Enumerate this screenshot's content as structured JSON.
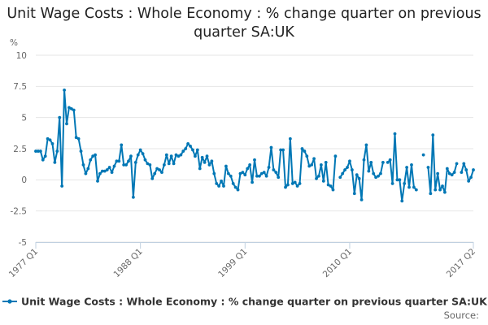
{
  "chart_data": {
    "type": "line",
    "title": "Unit Wage Costs : Whole Economy : % change quarter on previous quarter SA:UK",
    "ylabel": "%",
    "xlabel": "",
    "ylim": [
      -5,
      10
    ],
    "yticks": [
      "10",
      "7.5",
      "5",
      "2.5",
      "0",
      "-2.5",
      "-5"
    ],
    "x_ticklabels": [
      "1977 Q1",
      "1988 Q1",
      "1999 Q1",
      "2010 Q1",
      "2017 Q2"
    ],
    "grid": "horizontal",
    "legend": "bottom",
    "source_label": "Source:",
    "series": [
      {
        "name": "Unit Wage Costs : Whole Economy : % change quarter on previous quarter SA:UK",
        "color": "#0077b5",
        "marker": "circle",
        "values": [
          2.3,
          2.3,
          2.3,
          1.6,
          1.9,
          3.3,
          3.2,
          2.9,
          1.4,
          2.3,
          5.0,
          -0.5,
          7.2,
          4.5,
          5.8,
          5.7,
          5.6,
          3.4,
          3.3,
          2.3,
          1.2,
          0.5,
          0.9,
          1.6,
          1.9,
          2.0,
          -0.1,
          0.5,
          0.7,
          0.7,
          0.8,
          1.0,
          0.6,
          1.1,
          1.5,
          1.5,
          2.8,
          1.2,
          1.2,
          1.5,
          1.9,
          -1.4,
          1.4,
          2.0,
          2.4,
          2.1,
          1.6,
          1.3,
          1.2,
          0.1,
          0.5,
          0.9,
          0.8,
          0.6,
          1.2,
          2.0,
          1.3,
          1.9,
          1.3,
          2.0,
          1.9,
          2.0,
          2.3,
          2.5,
          2.9,
          2.7,
          2.4,
          1.9,
          2.4,
          0.9,
          1.8,
          1.4,
          1.9,
          1.2,
          1.5,
          0.5,
          -0.3,
          -0.5,
          -0.1,
          -0.5,
          1.1,
          0.5,
          0.3,
          -0.3,
          -0.6,
          -0.8,
          0.5,
          0.6,
          0.4,
          0.9,
          1.2,
          -0.2,
          1.6,
          0.3,
          0.3,
          0.5,
          0.6,
          0.3,
          1.0,
          2.6,
          0.8,
          0.6,
          0.2,
          2.4,
          2.4,
          -0.6,
          -0.4,
          3.3,
          -0.3,
          -0.2,
          -0.5,
          -0.3,
          2.5,
          2.3,
          1.9,
          1.1,
          1.2,
          1.7,
          0.1,
          0.3,
          1.2,
          -0.1,
          1.4,
          -0.4,
          -0.5,
          -0.8,
          1.9,
          null,
          0.2,
          0.5,
          0.8,
          1.0,
          1.5,
          0.8,
          -1.1,
          0.4,
          0.1,
          -1.6,
          1.6,
          2.8,
          0.7,
          1.4,
          0.5,
          0.2,
          0.3,
          0.5,
          1.4,
          null,
          1.4,
          1.6,
          -0.3,
          3.7,
          0.0,
          0.0,
          -1.7,
          -0.3,
          1.0,
          -0.6,
          1.2,
          -0.6,
          -0.8,
          null,
          null,
          2.0,
          null,
          1.0,
          -1.1,
          3.6,
          -0.8,
          0.5,
          -0.8,
          -0.5,
          -1.0,
          0.9,
          0.5,
          0.4,
          0.6,
          1.3,
          null,
          0.6,
          1.3,
          0.8,
          -0.1,
          0.2,
          0.8
        ]
      }
    ]
  }
}
